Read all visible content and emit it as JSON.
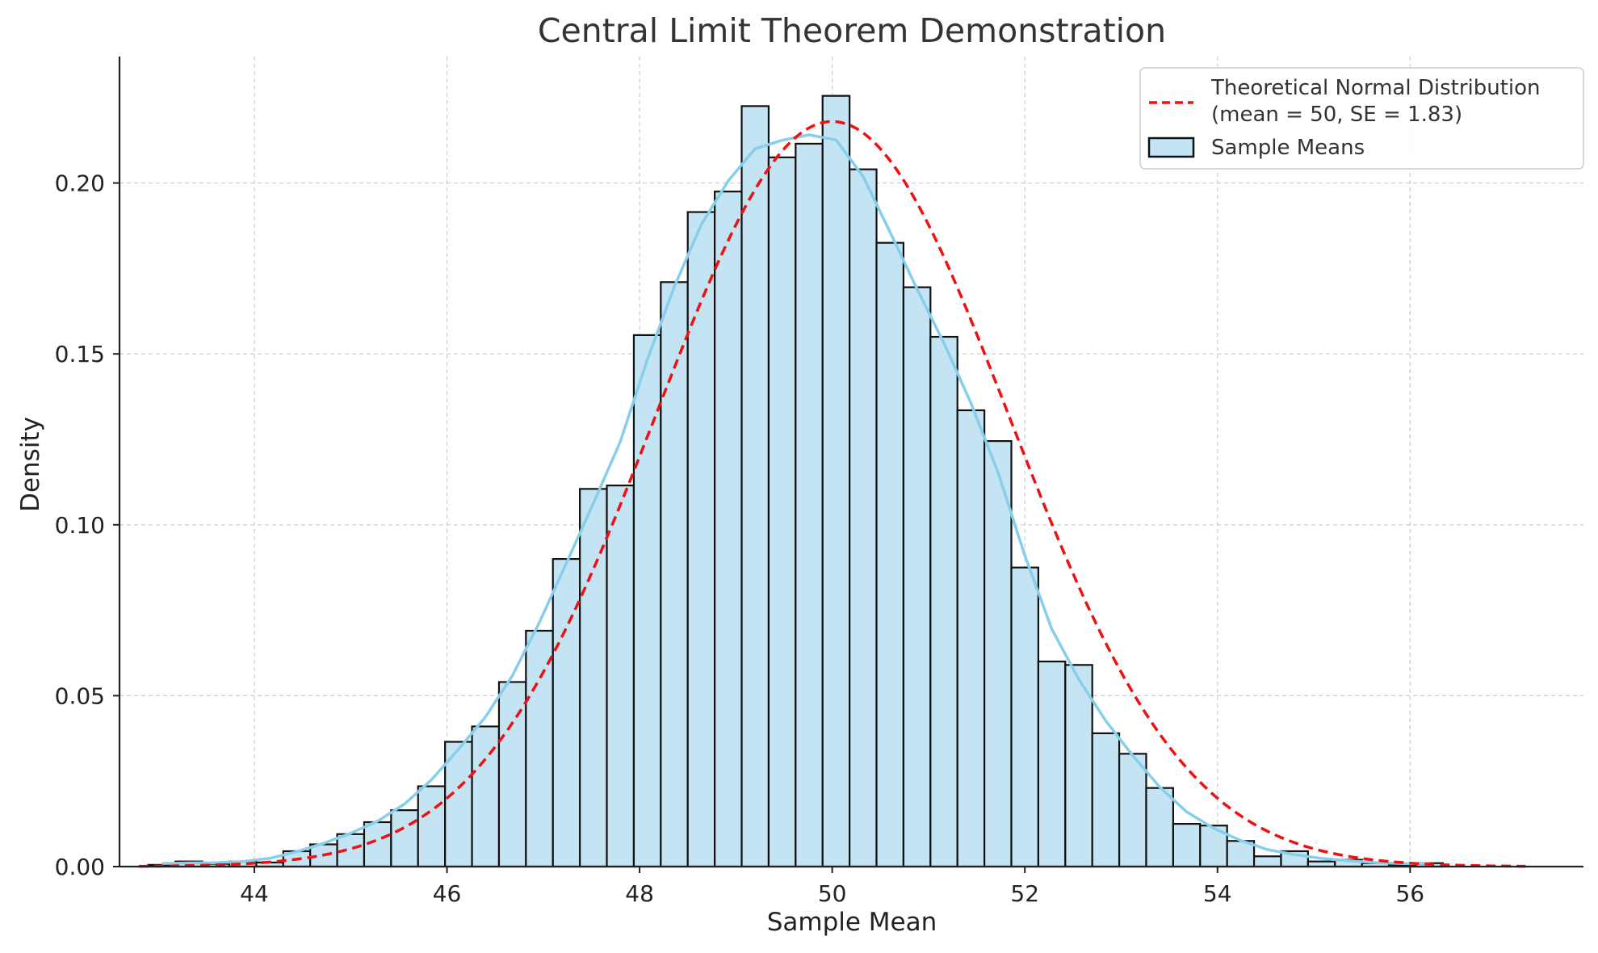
{
  "chart_data": {
    "type": "bar",
    "title": "Central Limit Theorem Demonstration",
    "xlabel": "Sample Mean",
    "ylabel": "Density",
    "xlim": [
      42.6,
      57.8
    ],
    "ylim": [
      0,
      0.237
    ],
    "xticks": [
      44,
      46,
      48,
      50,
      52,
      54,
      56
    ],
    "xtick_labels": [
      "44",
      "46",
      "48",
      "50",
      "52",
      "54",
      "56"
    ],
    "yticks": [
      0,
      0.05,
      0.1,
      0.15,
      0.2
    ],
    "ytick_labels": [
      "0.00",
      "0.05",
      "0.10",
      "0.15",
      "0.20"
    ],
    "grid": true,
    "legend_position": "top-right",
    "bin_start": 42.9,
    "bin_width": 0.28,
    "histogram_name": "Sample Means",
    "histogram_values": [
      0.0005,
      0.0015,
      0.0008,
      0.0015,
      0.0012,
      0.0045,
      0.0065,
      0.0095,
      0.013,
      0.0165,
      0.0235,
      0.0365,
      0.041,
      0.054,
      0.069,
      0.09,
      0.1105,
      0.1115,
      0.1555,
      0.171,
      0.1915,
      0.1975,
      0.2225,
      0.2075,
      0.2115,
      0.2255,
      0.204,
      0.1825,
      0.1695,
      0.155,
      0.1335,
      0.1245,
      0.0875,
      0.06,
      0.059,
      0.039,
      0.033,
      0.023,
      0.0125,
      0.012,
      0.0075,
      0.003,
      0.0045,
      0.0015,
      0.002,
      0.001,
      0.0005,
      0.001
    ],
    "normal_curve": {
      "name": "Theoretical Normal Distribution\n(mean = 50, SE = 1.83)",
      "mean": 50,
      "se": 1.83,
      "x_range": [
        42.8,
        57.2
      ]
    },
    "colors": {
      "bar_fill": "#c4e4f3",
      "bar_edge": "#111111",
      "kde_line": "#87ceeb",
      "normal_line": "#ee1111",
      "grid": "#cccccc",
      "axis": "#222222"
    }
  }
}
